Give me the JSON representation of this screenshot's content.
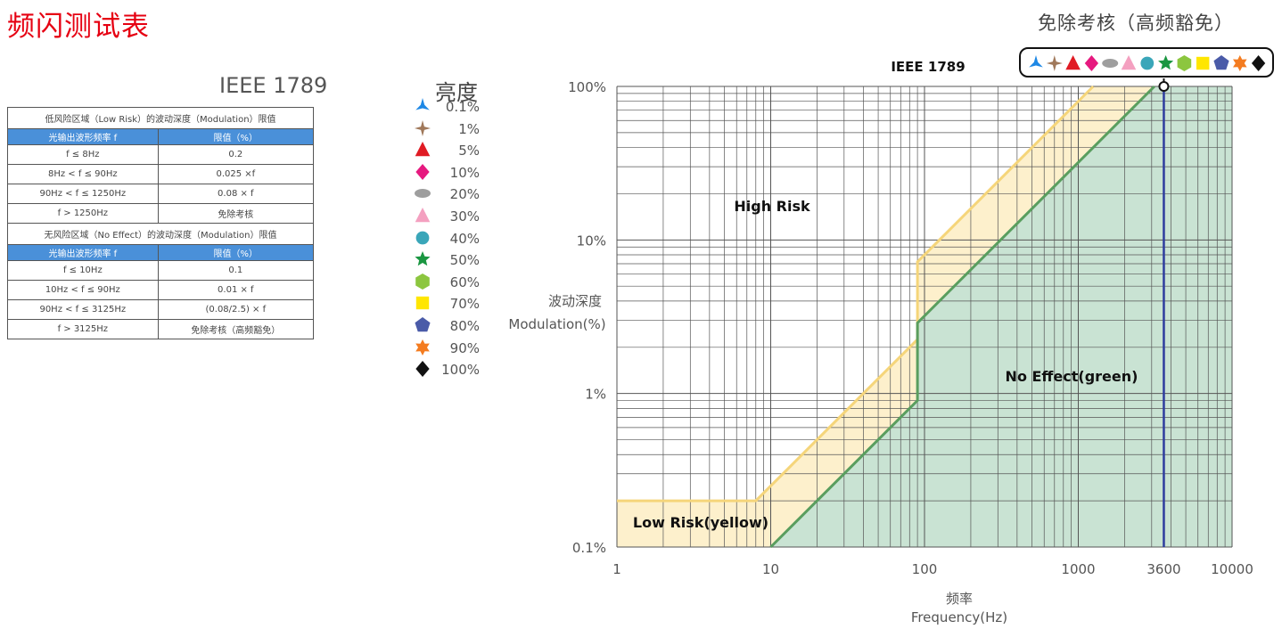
{
  "page": {
    "title": "频闪测试表",
    "standard_label": "IEEE 1789",
    "luminance_title": "亮度",
    "exempt_title": "免除考核（高频豁免）"
  },
  "table": {
    "low_risk_title": "低风险区域（Low Risk）的波动深度（Modulation）限值",
    "no_effect_title": "无风险区域（No Effect）的波动深度（Modulation）限值",
    "header_freq": "光输出波形频率 f",
    "header_limit": "限值（%）",
    "low_risk_rows": [
      [
        "f ≤ 8Hz",
        "0.2"
      ],
      [
        "8Hz < f ≤ 90Hz",
        "0.025 ×f"
      ],
      [
        "90Hz < f ≤ 1250Hz",
        "0.08 × f"
      ],
      [
        "f > 1250Hz",
        "免除考核"
      ]
    ],
    "no_effect_rows": [
      [
        "f ≤ 10Hz",
        "0.1"
      ],
      [
        "10Hz < f ≤ 90Hz",
        "0.01 × f"
      ],
      [
        "90Hz < f ≤ 3125Hz",
        "(0.08/2.5) ×   f"
      ],
      [
        "f > 3125Hz",
        "免除考核（高频豁免）"
      ]
    ]
  },
  "legend": [
    {
      "label": "0.1%",
      "marker": "tri-spike",
      "color": "#1e88e5"
    },
    {
      "label": "1%",
      "marker": "four-point-star",
      "color": "#a0785a"
    },
    {
      "label": "5%",
      "marker": "triangle",
      "color": "#e01b24"
    },
    {
      "label": "10%",
      "marker": "diamond",
      "color": "#e6197f"
    },
    {
      "label": "20%",
      "marker": "ellipse",
      "color": "#9e9e9e"
    },
    {
      "label": "30%",
      "marker": "triangle",
      "color": "#f4a0c0"
    },
    {
      "label": "40%",
      "marker": "circle",
      "color": "#3aa6b9"
    },
    {
      "label": "50%",
      "marker": "star",
      "color": "#1a9641"
    },
    {
      "label": "60%",
      "marker": "hexagon",
      "color": "#8cc63f"
    },
    {
      "label": "70%",
      "marker": "square",
      "color": "#ffe600"
    },
    {
      "label": "80%",
      "marker": "pentagon",
      "color": "#4a5ba8"
    },
    {
      "label": "90%",
      "marker": "six-point-star",
      "color": "#f47c20"
    },
    {
      "label": "100%",
      "marker": "diamond",
      "color": "#111111"
    }
  ],
  "chart_data": {
    "type": "area",
    "title": "IEEE 1789",
    "x_scale": "log",
    "y_scale": "log",
    "xlim": [
      1,
      10000
    ],
    "ylim": [
      0.1,
      100
    ],
    "xlabel": "频率",
    "xlabel_en": "Frequency(Hz)",
    "ylabel": "波动深度",
    "ylabel_en": "Modulation(%)",
    "x_ticks": [
      "1",
      "10",
      "100",
      "1000",
      "3600",
      "10000"
    ],
    "x_tick_values": [
      1,
      10,
      100,
      1000,
      3600,
      10000
    ],
    "y_ticks": [
      "0.1%",
      "1%",
      "10%",
      "100%"
    ],
    "y_tick_values": [
      0.1,
      1,
      10,
      100
    ],
    "grid": true,
    "series": [
      {
        "name": "Low Risk(yellow)",
        "color": "#f5d57a",
        "fill": "#fdf0cc",
        "x": [
          1,
          8,
          90,
          90,
          1250
        ],
        "y": [
          0.2,
          0.2,
          2.25,
          7.2,
          100
        ]
      },
      {
        "name": "No Effect(green)",
        "color": "#5a9e5f",
        "fill": "#c9e3d3",
        "x": [
          10,
          90,
          90,
          3125
        ],
        "y": [
          0.1,
          0.9,
          2.88,
          100
        ]
      }
    ],
    "marker_line": {
      "x": 3600,
      "color": "#2e3d9e"
    },
    "annotations": [
      "High Risk",
      "No Effect(green)",
      "Low Risk(yellow)"
    ]
  }
}
